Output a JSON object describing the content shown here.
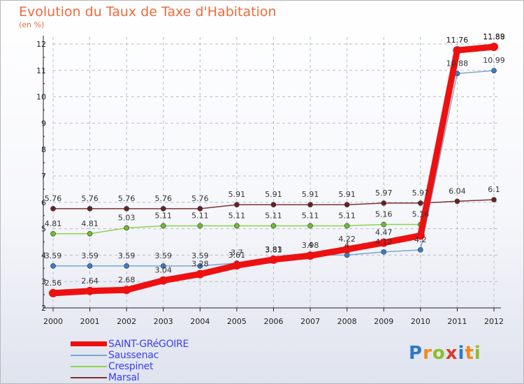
{
  "header": {
    "title": "Evolution du Taux de Taxe d'Habitation",
    "unit": "(en %)"
  },
  "logo": {
    "text": "Proxiti",
    "colors": [
      "#2f78c8",
      "#f08a1c",
      "#8cbd2a",
      "#dc3a2a"
    ]
  },
  "chart_data": {
    "type": "line",
    "title": "Evolution du Taux de Taxe d'Habitation",
    "ylabel": "(en %)",
    "xlabel": "",
    "x": [
      "2000",
      "2001",
      "2002",
      "2003",
      "2004",
      "2005",
      "2006",
      "2007",
      "2008",
      "2009",
      "2010",
      "2011",
      "2012"
    ],
    "ylim": [
      2,
      12
    ],
    "yticks": [
      "2",
      "3",
      "4",
      "5",
      "6",
      "7",
      "8",
      "9",
      "10",
      "11",
      "12"
    ],
    "grid": true,
    "legend_position": "bottom-left",
    "series": [
      {
        "name": "SAINT-GRéGOIRE",
        "color": "#ee1010",
        "width": "thick",
        "values": [
          2.56,
          2.64,
          2.68,
          3.04,
          3.28,
          3.61,
          3.83,
          3.98,
          4.22,
          4.47,
          4.74,
          11.76,
          11.89
        ],
        "labels": [
          "2.56",
          "2.64",
          "2.68",
          "3.04",
          "3.28",
          "3.61",
          "3.83",
          "3.98",
          "4.22",
          "4.47",
          "",
          "11.76",
          "11.89"
        ]
      },
      {
        "name": "Saussenac",
        "color": "#79a8d0",
        "marker": "#3a7bc8",
        "width": "thin",
        "values": [
          3.59,
          3.59,
          3.59,
          3.59,
          3.59,
          3.7,
          3.81,
          4,
          4,
          4.12,
          4.2,
          10.88,
          10.99
        ],
        "labels": [
          "3.59",
          "3.59",
          "3.59",
          "3.59",
          "3.59",
          "3.7",
          "3.81",
          "4",
          "4",
          "4.12",
          "4.2",
          "10.88",
          "10.99"
        ]
      },
      {
        "name": "Crespinet",
        "color": "#8ed24a",
        "marker": "#6fbe2e",
        "width": "thin",
        "values": [
          4.81,
          4.81,
          5.03,
          5.11,
          5.11,
          5.11,
          5.11,
          5.11,
          5.11,
          5.16,
          5.16,
          11.76,
          11.88
        ],
        "labels": [
          "4.81",
          "4.81",
          "5.03",
          "5.11",
          "5.11",
          "5.11",
          "5.11",
          "5.11",
          "5.11",
          "5.16",
          "5.16",
          "11.76",
          "11.88"
        ]
      },
      {
        "name": "Marsal",
        "color": "#7a3232",
        "marker": "#6a2020",
        "width": "thin",
        "values": [
          5.76,
          5.76,
          5.76,
          5.76,
          5.76,
          5.91,
          5.91,
          5.91,
          5.91,
          5.97,
          5.97,
          6.04,
          6.1
        ],
        "labels": [
          "5.76",
          "5.76",
          "5.76",
          "5.76",
          "5.76",
          "5.91",
          "5.91",
          "5.91",
          "5.91",
          "5.97",
          "5.97",
          "6.04",
          "6.1"
        ]
      }
    ]
  }
}
